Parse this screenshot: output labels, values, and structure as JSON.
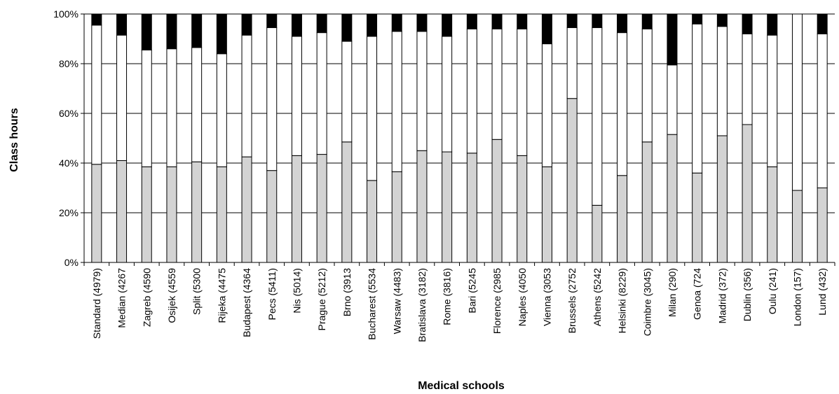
{
  "chart_data": {
    "type": "bar",
    "stacked": true,
    "normalized": true,
    "xlabel": "Medical schools",
    "ylabel": "Class hours",
    "ylim": [
      0,
      100
    ],
    "yticks": [
      "0%",
      "20%",
      "40%",
      "60%",
      "80%",
      "100%"
    ],
    "grid": true,
    "legend": "none",
    "categories": [
      "Standard (4979)",
      "Median (4267",
      "Zagreb (4590",
      "Osijek (4559",
      "Split (5300",
      "Rijeka (4475",
      "Budapest (4364",
      "Pecs (5411)",
      "Nis (5014)",
      "Prague (5212)",
      "Brno (3913",
      "Bucharest (5534",
      "Warsaw (4483)",
      "Bratislava (3182)",
      "Rome (3816)",
      "Bari (5245",
      "Florence (2985",
      "Naples (4050",
      "Vienna (3053",
      "Brussels (2752",
      "Athens (5242",
      "Helsinki (8229)",
      "Coimbre (3045)",
      "Milan (290)",
      "Genoa (724",
      "Madrid (372)",
      "Dublin (356)",
      "Oulu (241)",
      "London (157)",
      "Lund (432)"
    ],
    "series": [
      {
        "color": "#d3d3d3",
        "values": [
          39.5,
          41,
          38.5,
          38.5,
          40.5,
          38.5,
          42.5,
          37,
          43,
          43.5,
          48.5,
          33,
          36.5,
          45,
          44.5,
          44,
          49.5,
          43,
          38.5,
          66,
          23,
          35,
          48.5,
          51.5,
          36,
          51,
          55.5,
          38.5,
          29,
          30
        ]
      },
      {
        "color": "#ffffff",
        "values": [
          56,
          50.5,
          47,
          47.5,
          46,
          45.5,
          49,
          57.5,
          48,
          49,
          40.5,
          58,
          56.5,
          48,
          46.5,
          50,
          44.5,
          51,
          49.5,
          28.5,
          71.5,
          57.5,
          45.5,
          28,
          60,
          44,
          36.5,
          53,
          71,
          62
        ]
      },
      {
        "color": "#000000",
        "values": [
          4.5,
          8.5,
          14.5,
          14,
          13.5,
          16,
          8.5,
          5.5,
          9,
          7.5,
          11,
          9,
          7,
          7,
          9,
          6,
          6,
          6,
          12,
          5.5,
          5.5,
          7.5,
          6,
          20.5,
          4,
          5,
          8,
          8.5,
          0,
          8
        ]
      }
    ]
  }
}
